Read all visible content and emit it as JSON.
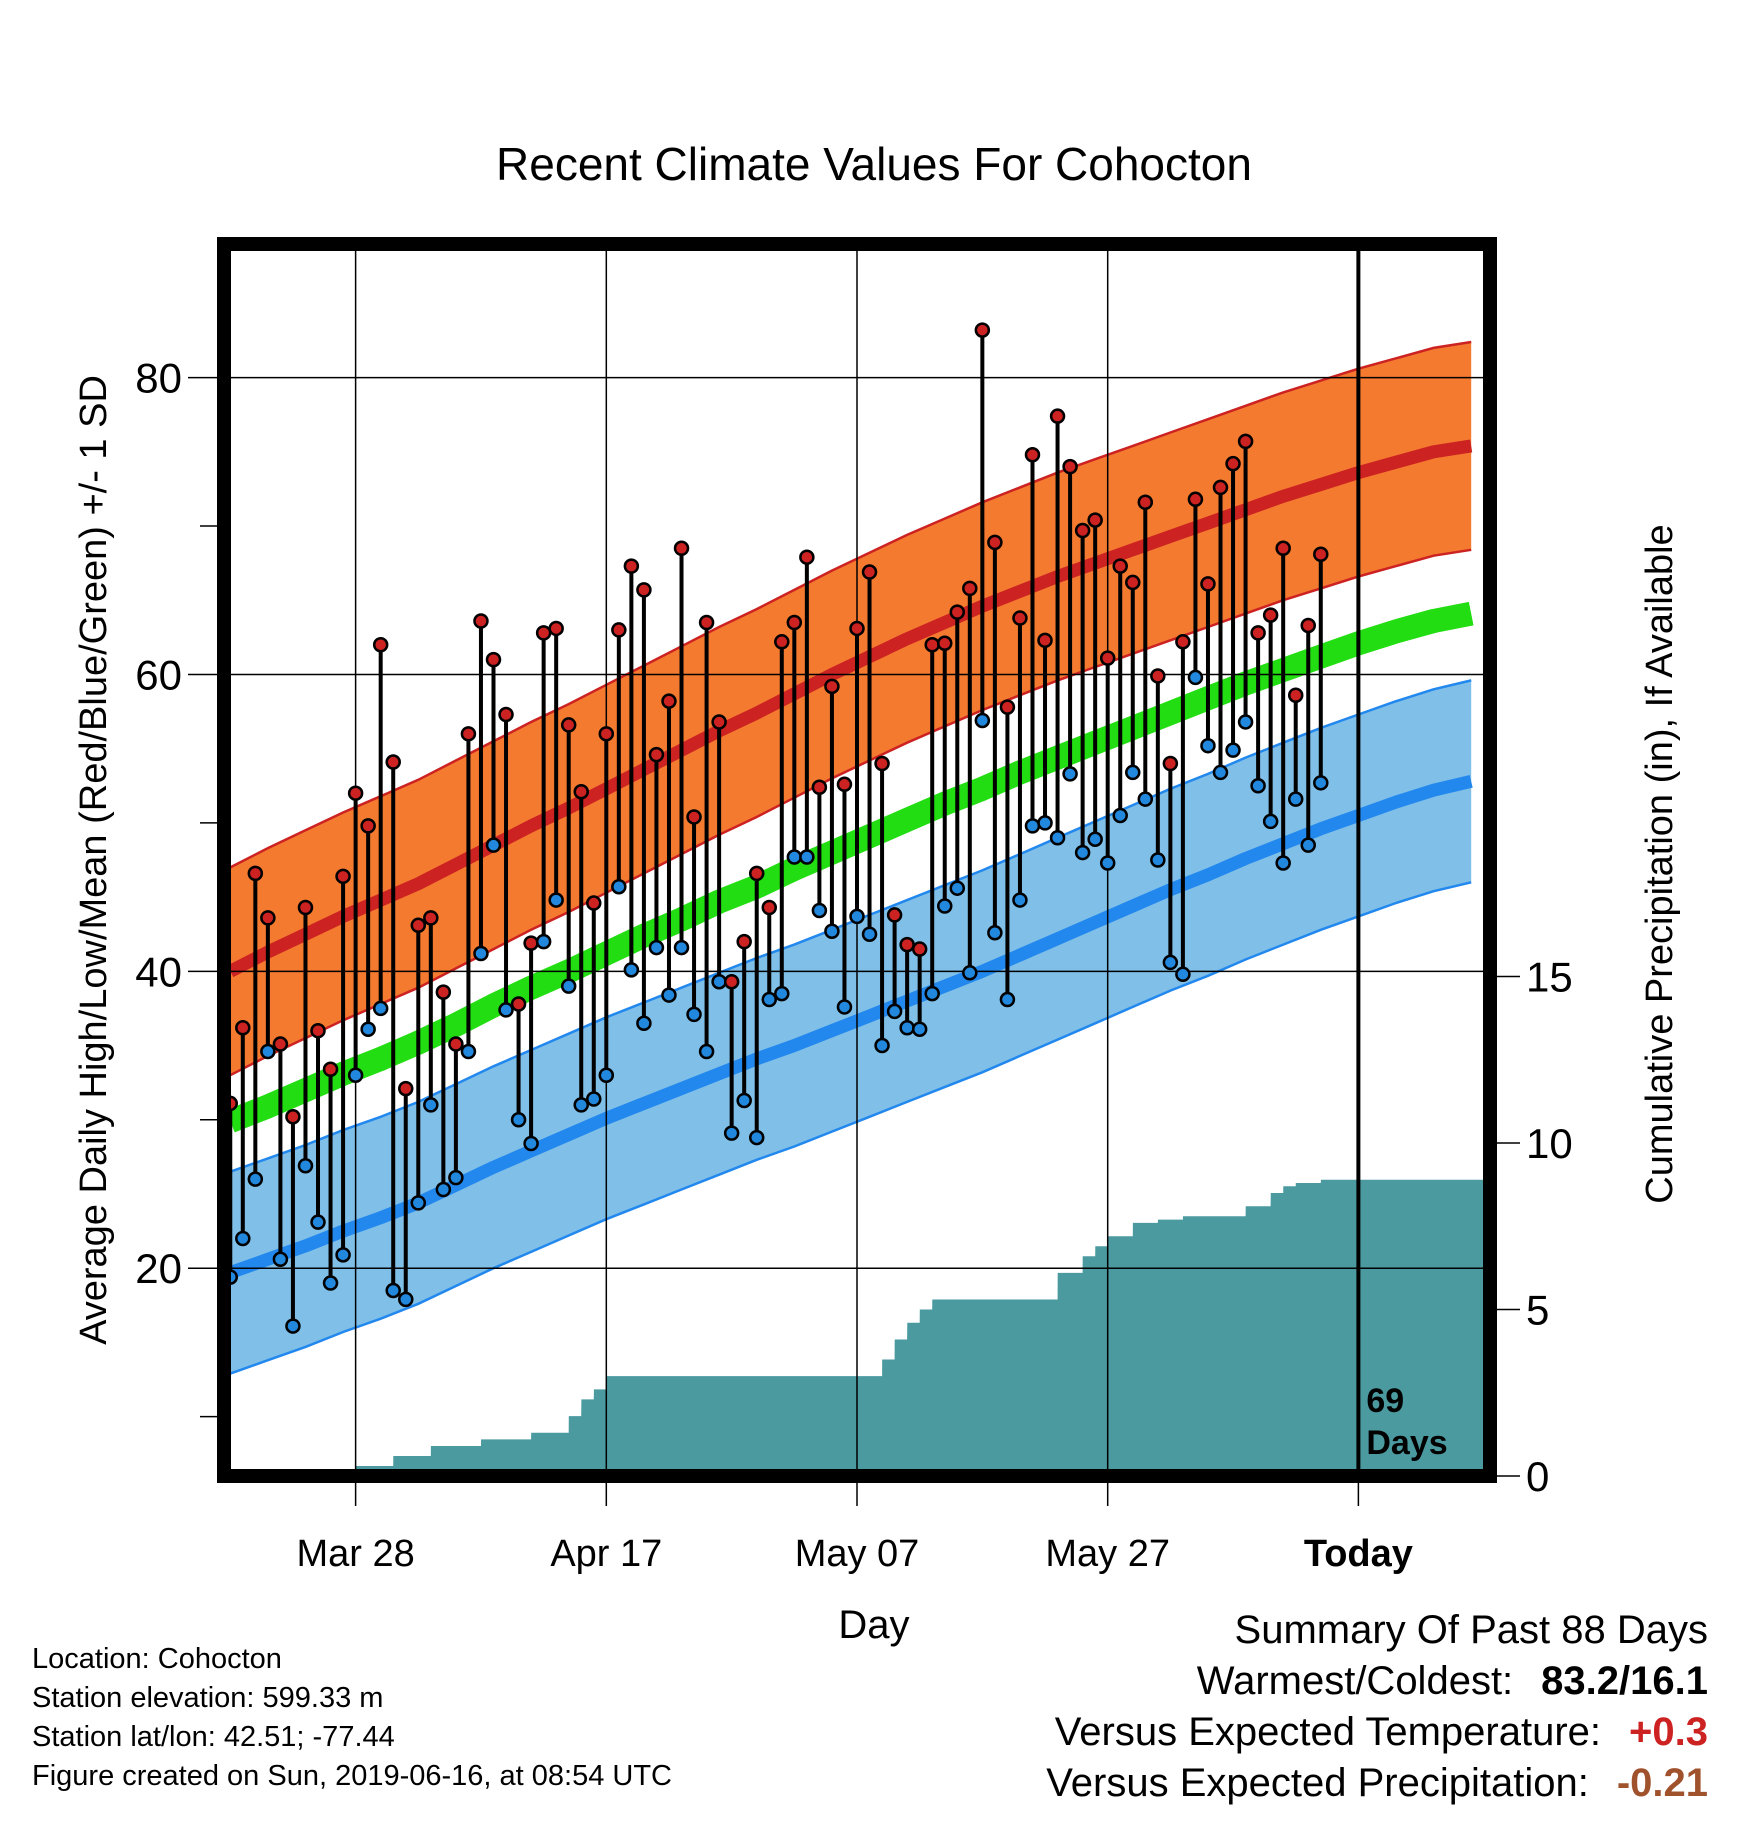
{
  "chart_data": {
    "type": "line",
    "title": "Recent Climate Values For Cohocton",
    "xlabel": "Day",
    "ylabel": "Average Daily High/Low/Mean (Red/Blue/Green) +/- 1 SD",
    "y2label": "Cumulative Precipitation (in), If Available",
    "ylim": [
      6,
      89
    ],
    "y2lim": [
      0,
      37
    ],
    "y_ticks": [
      "20",
      "40",
      "60",
      "80"
    ],
    "y2_ticks": [
      "0",
      "5",
      "10",
      "15"
    ],
    "x_tick_labels": [
      "Mar 28",
      "Apr 17",
      "May 07",
      "May 27",
      "Today"
    ],
    "x_tick_days": [
      10,
      30,
      50,
      70,
      90
    ],
    "grid": true,
    "today_label": "69\nDays",
    "today_label_lines": [
      "69",
      "Days"
    ],
    "normal_high": [
      40.0,
      41.3,
      42.5,
      43.7,
      44.8,
      45.9,
      47.2,
      48.5,
      49.8,
      51.0,
      52.3,
      53.6,
      54.9,
      56.2,
      57.4,
      58.7,
      60.0,
      61.2,
      62.4,
      63.5,
      64.6,
      65.6,
      66.6,
      67.5,
      68.4,
      69.3,
      70.2,
      71.1,
      72.0,
      72.8,
      73.6,
      74.3,
      75.0,
      75.4
    ],
    "normal_high_sd": 7.0,
    "normal_low": [
      19.7,
      20.6,
      21.5,
      22.5,
      23.4,
      24.4,
      25.6,
      26.8,
      27.9,
      29.0,
      30.1,
      31.1,
      32.1,
      33.1,
      34.1,
      35.0,
      36.0,
      37.0,
      38.0,
      39.0,
      40.0,
      41.1,
      42.2,
      43.3,
      44.4,
      45.5,
      46.5,
      47.6,
      48.6,
      49.6,
      50.5,
      51.4,
      52.2,
      52.8
    ],
    "normal_low_sd": 6.8,
    "normal_mean": [
      29.9,
      30.9,
      32.0,
      33.1,
      34.1,
      35.2,
      36.4,
      37.7,
      38.9,
      40.0,
      41.2,
      42.4,
      43.5,
      44.7,
      45.7,
      46.9,
      48.0,
      49.1,
      50.2,
      51.3,
      52.3,
      53.4,
      54.4,
      55.4,
      56.4,
      57.4,
      58.4,
      59.4,
      60.3,
      61.2,
      62.1,
      62.9,
      63.6,
      64.1
    ],
    "normal_x": [
      0,
      3,
      6,
      9,
      12,
      15,
      18,
      21,
      24,
      27,
      30,
      33,
      36,
      39,
      42,
      45,
      48,
      51,
      54,
      57,
      60,
      63,
      66,
      69,
      72,
      75,
      78,
      81,
      84,
      87,
      90,
      93,
      96,
      99
    ],
    "series": [
      {
        "name": "High",
        "color": "#cc2222",
        "values": [
          31.1,
          36.2,
          46.6,
          43.6,
          35.1,
          30.2,
          44.3,
          36.0,
          33.4,
          46.4,
          52.0,
          49.8,
          62.0,
          54.1,
          32.1,
          43.1,
          43.6,
          38.6,
          35.1,
          56.0,
          63.6,
          61.0,
          57.3,
          37.8,
          41.9,
          62.8,
          63.1,
          56.6,
          52.1,
          44.6,
          56.0,
          63.0,
          67.3,
          65.7,
          54.6,
          58.2,
          68.5,
          50.4,
          63.5,
          56.8,
          39.3,
          42.0,
          46.6,
          44.3,
          62.2,
          63.5,
          67.9,
          52.4,
          59.2,
          52.6,
          63.1,
          66.9,
          54.0,
          43.8,
          41.8,
          41.5,
          62.0,
          62.1,
          64.2,
          65.8,
          83.2,
          68.9,
          57.8,
          63.8,
          74.8,
          62.3,
          77.4,
          74.0,
          69.7,
          70.4,
          61.1,
          67.3,
          66.2,
          71.6,
          59.9,
          54.0,
          62.2,
          71.8,
          66.1,
          72.6,
          74.2,
          75.7,
          62.8,
          64.0,
          68.5,
          58.6,
          63.3,
          68.1
        ]
      },
      {
        "name": "Low",
        "color": "#2288dd",
        "values": [
          19.4,
          22.0,
          26.0,
          34.6,
          20.6,
          16.1,
          26.9,
          23.1,
          19.0,
          20.9,
          33.0,
          36.1,
          37.5,
          18.5,
          17.9,
          24.4,
          31.0,
          25.3,
          26.1,
          34.6,
          41.2,
          48.5,
          37.4,
          30.0,
          28.4,
          42.0,
          44.8,
          39.0,
          31.0,
          31.4,
          33.0,
          45.7,
          40.1,
          36.5,
          41.6,
          38.4,
          41.6,
          37.1,
          34.6,
          39.3,
          29.1,
          31.3,
          28.8,
          38.1,
          38.5,
          47.7,
          47.7,
          44.1,
          42.7,
          37.6,
          43.7,
          42.5,
          35.0,
          37.3,
          36.2,
          36.1,
          38.5,
          44.4,
          45.6,
          39.9,
          56.9,
          42.6,
          38.1,
          44.8,
          49.8,
          50.0,
          49.0,
          53.3,
          48.0,
          48.9,
          47.3,
          50.5,
          53.4,
          51.6,
          47.5,
          40.6,
          39.8,
          59.8,
          55.2,
          53.4,
          54.9,
          56.8,
          52.5,
          50.1,
          47.3,
          51.6,
          48.5,
          52.7
        ]
      },
      {
        "name": "Precipitation",
        "color": "#4a9aa0",
        "x": [
          0,
          10,
          10.01,
          13,
          13.01,
          16,
          16.01,
          20,
          20.01,
          24,
          24.01,
          27,
          27.01,
          28,
          28.01,
          29,
          29.01,
          30,
          30.01,
          52,
          52.01,
          53,
          53.01,
          54,
          54.01,
          55,
          55.01,
          56,
          56.01,
          66,
          66.01,
          68,
          68.01,
          69,
          69.01,
          70,
          70.01,
          72,
          72.01,
          74,
          74.01,
          76,
          76.01,
          81,
          81.01,
          83,
          83.01,
          84,
          84.01,
          85,
          85.01,
          87,
          87.01,
          100
        ],
        "values": [
          0,
          0,
          0.3,
          0.3,
          0.6,
          0.6,
          0.9,
          0.9,
          1.1,
          1.1,
          1.3,
          1.3,
          1.8,
          1.8,
          2.3,
          2.3,
          2.6,
          2.6,
          3.0,
          3.0,
          3.5,
          3.5,
          4.1,
          4.1,
          4.6,
          4.6,
          5.0,
          5.0,
          5.3,
          5.3,
          6.1,
          6.1,
          6.6,
          6.6,
          6.9,
          6.9,
          7.2,
          7.2,
          7.6,
          7.6,
          7.7,
          7.7,
          7.8,
          7.8,
          8.1,
          8.1,
          8.5,
          8.5,
          8.7,
          8.7,
          8.8,
          8.8,
          8.9,
          8.9
        ]
      }
    ]
  },
  "footer": {
    "location": "Location: Cohocton",
    "elevation": "Station elevation: 599.33 m",
    "latlon": "Station lat/lon: 42.51; -77.44",
    "created": "Figure created on Sun, 2019-06-16, at 08:54 UTC"
  },
  "summary": {
    "title": "Summary Of Past 88 Days",
    "warmest_label": "Warmest/Coldest:",
    "warmest_value": "83.2/16.1",
    "temp_label": "Versus Expected Temperature:",
    "temp_value": "+0.3",
    "temp_color": "#cc2222",
    "precip_label": "Versus Expected Precipitation:",
    "precip_value": "-0.21",
    "precip_color": "#a0522d"
  },
  "colors": {
    "high_band": "#f47a30",
    "high_line": "#cc2222",
    "low_band": "#80c0e8",
    "low_line": "#2288ee",
    "mean_line": "#22dd11",
    "precip_fill": "#4a9aa0"
  }
}
